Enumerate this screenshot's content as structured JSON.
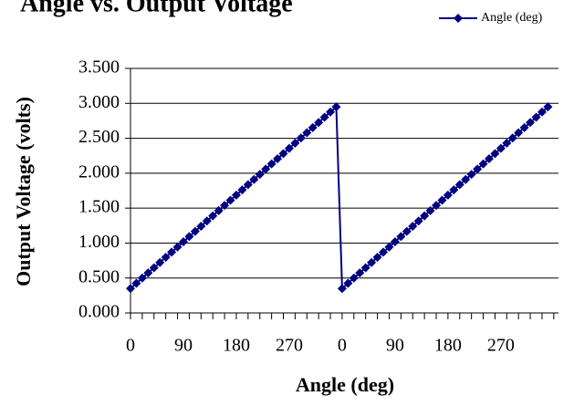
{
  "chart_data": {
    "type": "line",
    "title": "Angle vs. Output Voltage",
    "xlabel": "Angle (deg)",
    "ylabel": "Output Voltage (volts)",
    "categories": [
      "0",
      null,
      null,
      null,
      null,
      null,
      null,
      null,
      null,
      "90",
      null,
      null,
      null,
      null,
      null,
      null,
      null,
      null,
      "180",
      null,
      null,
      null,
      null,
      null,
      null,
      null,
      null,
      "270",
      null,
      null,
      null,
      null,
      null,
      null,
      null,
      null,
      "0",
      null,
      null,
      null,
      null,
      null,
      null,
      null,
      null,
      "90",
      null,
      null,
      null,
      null,
      null,
      null,
      null,
      null,
      "180",
      null,
      null,
      null,
      null,
      null,
      null,
      null,
      null,
      "270",
      null,
      null,
      null,
      null,
      null,
      null,
      null,
      null
    ],
    "series": [
      {
        "name": "Angle (deg)",
        "color": "#000080",
        "values": [
          0.35,
          0.424,
          0.499,
          0.573,
          0.647,
          0.721,
          0.796,
          0.87,
          0.944,
          1.019,
          1.093,
          1.167,
          1.241,
          1.316,
          1.39,
          1.464,
          1.539,
          1.613,
          1.687,
          1.761,
          1.836,
          1.91,
          1.984,
          2.059,
          2.133,
          2.207,
          2.281,
          2.356,
          2.43,
          2.504,
          2.579,
          2.653,
          2.727,
          2.801,
          2.876,
          2.95,
          0.35,
          0.424,
          0.499,
          0.573,
          0.647,
          0.721,
          0.796,
          0.87,
          0.944,
          1.019,
          1.093,
          1.167,
          1.241,
          1.316,
          1.39,
          1.464,
          1.539,
          1.613,
          1.687,
          1.761,
          1.836,
          1.91,
          1.984,
          2.059,
          2.133,
          2.207,
          2.281,
          2.356,
          2.43,
          2.504,
          2.579,
          2.653,
          2.727,
          2.801,
          2.876,
          2.95
        ]
      }
    ],
    "ylim": [
      0,
      3.5
    ],
    "yticks": [
      {
        "value": 0,
        "label": "0.000"
      },
      {
        "value": 0.5,
        "label": "0.500"
      },
      {
        "value": 1,
        "label": "1.000"
      },
      {
        "value": 1.5,
        "label": "1.500"
      },
      {
        "value": 2,
        "label": "2.000"
      },
      {
        "value": 2.5,
        "label": "2.500"
      },
      {
        "value": 3,
        "label": "3.000"
      },
      {
        "value": 3.5,
        "label": "3.500"
      }
    ],
    "grid": true,
    "legend": "top-right"
  }
}
